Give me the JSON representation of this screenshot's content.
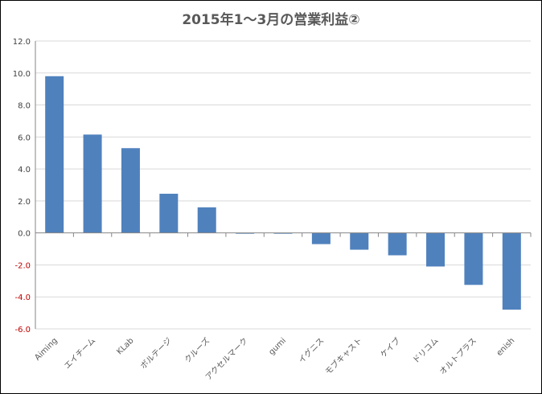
{
  "chart_data": {
    "type": "bar",
    "title": "2015年1〜3月の営業利益②",
    "xlabel": "",
    "ylabel": "",
    "ylim": [
      -6.0,
      12.0
    ],
    "yticks": [
      "12.0",
      "10.0",
      "8.0",
      "6.0",
      "4.0",
      "2.0",
      "0.0",
      "-2.0",
      "-4.0",
      "-6.0"
    ],
    "ytick_values": [
      12,
      10,
      8,
      6,
      4,
      2,
      0,
      -2,
      -4,
      -6
    ],
    "categories": [
      "Aiming",
      "エイチーム",
      "KLab",
      "ボルテージ",
      "クルーズ",
      "アクセルマーク",
      "gumi",
      "イグニス",
      "モブキャスト",
      "ケイブ",
      "ドリコム",
      "オルトプラス",
      "enish"
    ],
    "values": [
      9.8,
      6.15,
      5.3,
      2.45,
      1.6,
      -0.05,
      -0.05,
      -0.7,
      -1.05,
      -1.4,
      -2.1,
      -3.25,
      -4.8
    ],
    "grid": true,
    "legend": "none",
    "colors": {
      "bar": "#4f81bd",
      "grid": "#d9d9d9",
      "axis": "#868686",
      "positive_tick": "#404040",
      "negative_tick": "#c00000",
      "label": "#595959"
    }
  }
}
